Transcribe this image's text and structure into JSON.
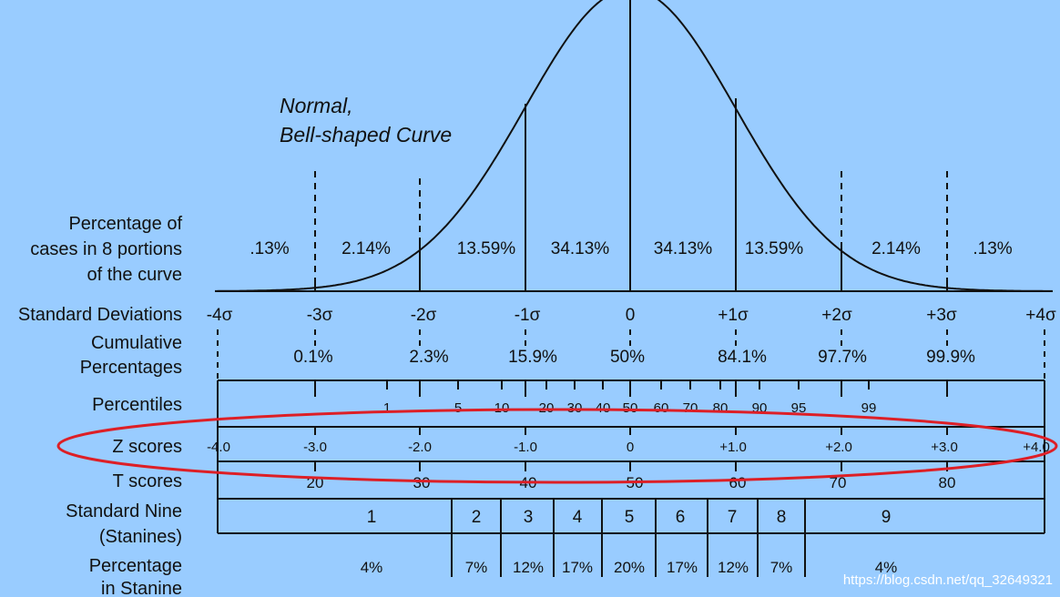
{
  "title": [
    "Normal,",
    "Bell-shaped Curve"
  ],
  "row_labels": {
    "percentage_cases": [
      "Percentage of",
      "cases in 8 portions",
      "of the curve"
    ],
    "standard_deviations": "Standard Deviations",
    "cumulative": [
      "Cumulative",
      "Percentages"
    ],
    "percentiles": "Percentiles",
    "z_scores": "Z scores",
    "t_scores": "T scores",
    "stanines": [
      "Standard Nine",
      "(Stanines)"
    ],
    "stanine_pct": [
      "Percentage",
      "in Stanine"
    ]
  },
  "portion_percentages": [
    ".13%",
    "2.14%",
    "13.59%",
    "34.13%",
    "34.13%",
    "13.59%",
    "2.14%",
    ".13%"
  ],
  "sd_labels": [
    "-4σ",
    "-3σ",
    "-2σ",
    "-1σ",
    "0",
    "+1σ",
    "+2σ",
    "+3σ",
    "+4σ"
  ],
  "cumulative_percentages": [
    "0.1%",
    "2.3%",
    "15.9%",
    "50%",
    "84.1%",
    "97.7%",
    "99.9%"
  ],
  "percentiles": [
    "1",
    "5",
    "10",
    "20",
    "30",
    "40",
    "50",
    "60",
    "70",
    "80",
    "90",
    "95",
    "99"
  ],
  "z_scores": [
    "-4.0",
    "-3.0",
    "-2.0",
    "-1.0",
    "0",
    "+1.0",
    "+2.0",
    "+3.0",
    "+4.0"
  ],
  "t_scores": [
    "20",
    "30",
    "40",
    "50",
    "60",
    "70",
    "80"
  ],
  "stanines": [
    "1",
    "2",
    "3",
    "4",
    "5",
    "6",
    "7",
    "8",
    "9"
  ],
  "stanine_percentages": [
    "4%",
    "7%",
    "12%",
    "17%",
    "20%",
    "17%",
    "12%",
    "7%",
    "4%"
  ],
  "watermark": "https://blog.csdn.net/qq_32649321",
  "colors": {
    "background": "#99ccff",
    "ink": "#111111",
    "highlight": "#dd1f26"
  }
}
